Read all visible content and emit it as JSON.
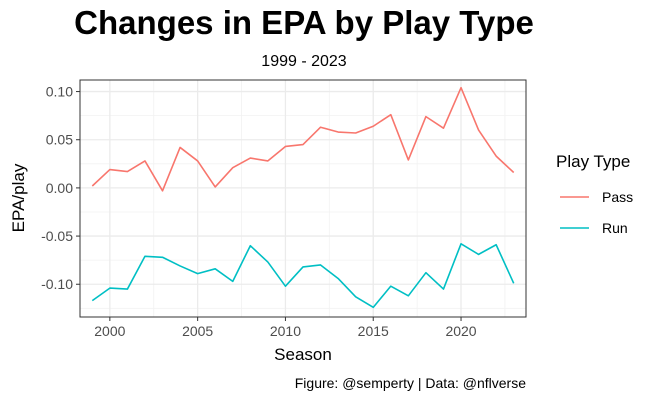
{
  "chart_data": {
    "type": "line",
    "title": "Changes in EPA by Play Type",
    "subtitle": "1999 - 2023",
    "xlabel": "Season",
    "ylabel": "EPA/play",
    "caption": "Figure: @semperty | Data: @nflverse",
    "legend_title": "Play Type",
    "legend_position": "right",
    "grid": true,
    "xlim": [
      1998.3,
      2023.7
    ],
    "ylim": [
      -0.134,
      0.112
    ],
    "x_ticks": [
      2000,
      2005,
      2010,
      2015,
      2020
    ],
    "x_tick_labels": [
      "2000",
      "2005",
      "2010",
      "2015",
      "2020"
    ],
    "y_ticks": [
      -0.1,
      -0.05,
      0.0,
      0.05,
      0.1
    ],
    "y_tick_labels": [
      "-0.10",
      "-0.05",
      "0.00",
      "0.05",
      "0.10"
    ],
    "x": [
      1999,
      2000,
      2001,
      2002,
      2003,
      2004,
      2005,
      2006,
      2007,
      2008,
      2009,
      2010,
      2011,
      2012,
      2013,
      2014,
      2015,
      2016,
      2017,
      2018,
      2019,
      2020,
      2021,
      2022,
      2023
    ],
    "series": [
      {
        "name": "Pass",
        "color": "#F8766D",
        "values": [
          0.002,
          0.019,
          0.017,
          0.028,
          -0.003,
          0.042,
          0.028,
          0.001,
          0.021,
          0.031,
          0.028,
          0.043,
          0.045,
          0.063,
          0.058,
          0.057,
          0.064,
          0.076,
          0.029,
          0.074,
          0.062,
          0.104,
          0.06,
          0.033,
          0.016
        ]
      },
      {
        "name": "Run",
        "color": "#00BFC4",
        "values": [
          -0.117,
          -0.104,
          -0.105,
          -0.071,
          -0.072,
          -0.081,
          -0.089,
          -0.084,
          -0.097,
          -0.06,
          -0.077,
          -0.102,
          -0.082,
          -0.08,
          -0.094,
          -0.113,
          -0.124,
          -0.102,
          -0.112,
          -0.088,
          -0.105,
          -0.058,
          -0.069,
          -0.059,
          -0.099
        ]
      }
    ]
  }
}
